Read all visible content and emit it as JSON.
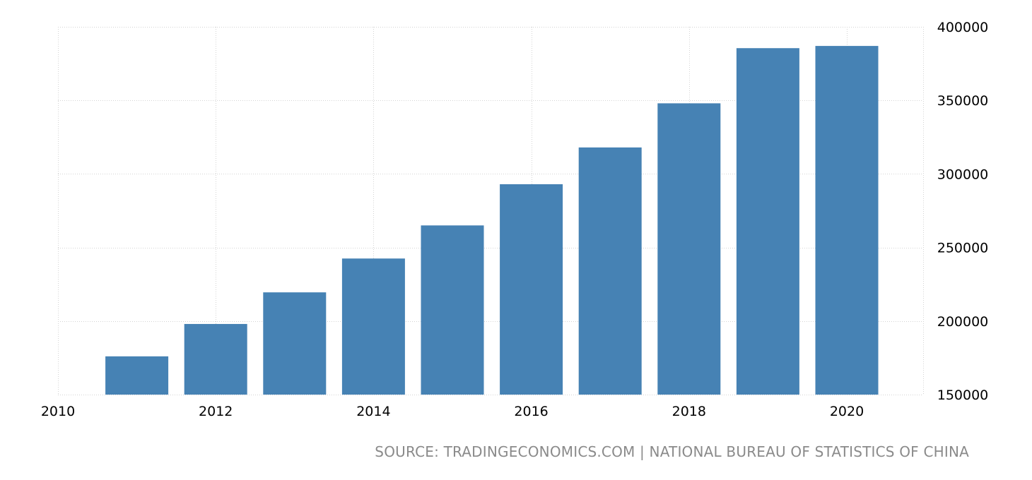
{
  "chart_data": {
    "type": "bar",
    "categories": [
      "2011",
      "2012",
      "2013",
      "2014",
      "2015",
      "2016",
      "2017",
      "2018",
      "2019",
      "2020"
    ],
    "values": [
      176000,
      198000,
      219500,
      242500,
      265000,
      293000,
      318000,
      348000,
      385500,
      387000
    ],
    "x_ticks": [
      "2010",
      "2012",
      "2014",
      "2016",
      "2018",
      "2020"
    ],
    "y_ticks": [
      "150000",
      "200000",
      "250000",
      "300000",
      "350000",
      "400000"
    ],
    "ylim": [
      150000,
      400000
    ],
    "xlim": [
      2010,
      2021
    ],
    "title": "",
    "xlabel": "",
    "ylabel": "",
    "grid": true,
    "y_axis_position": "right",
    "bar_color": "#4682b4",
    "grid_color": "#d3d3d3"
  },
  "source": "SOURCE: TRADINGECONOMICS.COM | NATIONAL BUREAU OF STATISTICS OF CHINA"
}
